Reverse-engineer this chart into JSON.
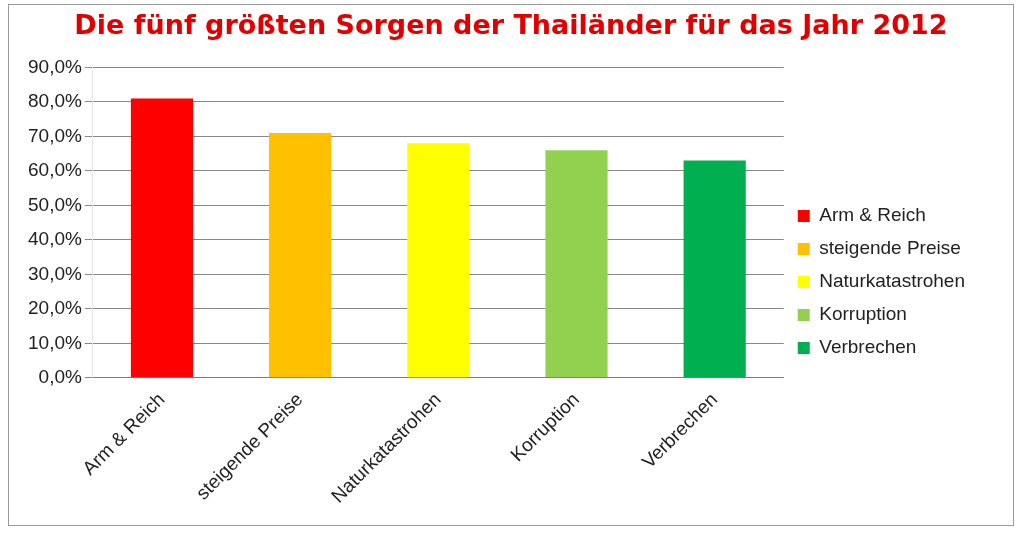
{
  "chart_data": {
    "type": "bar",
    "title": "Die fünf größten Sorgen der Thailänder für das Jahr 2012",
    "categories": [
      "Arm & Reich",
      "steigende Preise",
      "Naturkatastrohen",
      "Korruption",
      "Verbrechen"
    ],
    "series": [
      {
        "name": "Arm & Reich",
        "color": "#ff0000",
        "values": [
          81,
          null,
          null,
          null,
          null
        ]
      },
      {
        "name": "steigende Preise",
        "color": "#ffc000",
        "values": [
          null,
          71,
          null,
          null,
          null
        ]
      },
      {
        "name": "Naturkatastrohen",
        "color": "#ffff00",
        "values": [
          null,
          null,
          68,
          null,
          null
        ]
      },
      {
        "name": "Korruption",
        "color": "#92d050",
        "values": [
          null,
          null,
          null,
          66,
          null
        ]
      },
      {
        "name": "Verbrechen",
        "color": "#00b050",
        "values": [
          null,
          null,
          null,
          null,
          63
        ]
      }
    ],
    "ylim": [
      0,
      90
    ],
    "yticks": [
      {
        "value": 0,
        "label": "0,0%"
      },
      {
        "value": 10,
        "label": "10,0%"
      },
      {
        "value": 20,
        "label": "20,0%"
      },
      {
        "value": 30,
        "label": "30,0%"
      },
      {
        "value": 40,
        "label": "40,0%"
      },
      {
        "value": 50,
        "label": "50,0%"
      },
      {
        "value": 60,
        "label": "60,0%"
      },
      {
        "value": 70,
        "label": "70,0%"
      },
      {
        "value": 80,
        "label": "80,0%"
      },
      {
        "value": 90,
        "label": "90,0%"
      }
    ],
    "grid": "y",
    "legend": "right"
  }
}
